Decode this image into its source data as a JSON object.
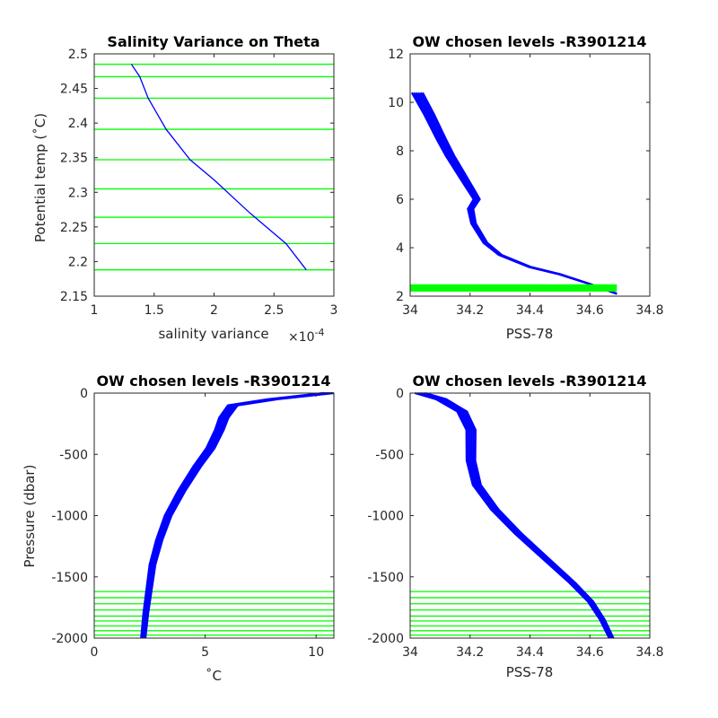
{
  "chart_data": [
    {
      "type": "line",
      "title": "Salinity Variance on Theta",
      "xlabel": "salinity variance",
      "x_exponent_label": "×10",
      "x_exponent_power": "-4",
      "ylabel": "Potential temp (˚C)",
      "xlim": [
        1,
        3
      ],
      "ylim": [
        2.15,
        2.5
      ],
      "xticks": [
        1,
        1.5,
        2,
        2.5,
        3
      ],
      "xtick_labels": [
        "1",
        "1.5",
        "2",
        "2.5",
        "3"
      ],
      "yticks": [
        2.15,
        2.2,
        2.25,
        2.3,
        2.35,
        2.4,
        2.45,
        2.5
      ],
      "ytick_labels": [
        "2.15",
        "2.2",
        "2.25",
        "2.3",
        "2.35",
        "2.4",
        "2.45",
        "2.5"
      ],
      "series": [
        {
          "color": "#0000ff",
          "x": [
            1.31,
            1.38,
            1.45,
            1.6,
            1.8,
            2.0,
            2.3,
            2.6,
            2.77
          ],
          "y": [
            2.485,
            2.467,
            2.436,
            2.391,
            2.347,
            2.318,
            2.27,
            2.226,
            2.188
          ]
        }
      ],
      "chosen_levels": {
        "color": "#00ff00",
        "y": [
          2.485,
          2.467,
          2.436,
          2.391,
          2.347,
          2.305,
          2.264,
          2.226,
          2.188
        ]
      }
    },
    {
      "type": "line",
      "title": "OW chosen levels -R3901214",
      "xlabel": "PSS-78",
      "ylabel": "",
      "xlim": [
        34,
        34.8
      ],
      "ylim": [
        2,
        12
      ],
      "xticks": [
        34,
        34.2,
        34.4,
        34.6,
        34.8
      ],
      "xtick_labels": [
        "34",
        "34.2",
        "34.4",
        "34.6",
        "34.8"
      ],
      "yticks": [
        2,
        4,
        6,
        8,
        10,
        12
      ],
      "ytick_labels": [
        "2",
        "4",
        "6",
        "8",
        "10",
        "12"
      ],
      "series": [
        {
          "color": "#0000ff",
          "x": [
            34.02,
            34.06,
            34.1,
            34.13,
            34.17,
            34.2,
            34.22,
            34.2,
            34.21,
            34.25,
            34.3,
            34.4,
            34.5,
            34.6,
            34.69
          ],
          "y": [
            10.4,
            9.5,
            8.5,
            7.8,
            7.0,
            6.4,
            6.0,
            5.6,
            5.0,
            4.2,
            3.7,
            3.2,
            2.9,
            2.5,
            2.1
          ]
        }
      ],
      "chosen_levels_band": {
        "color": "#00ff00",
        "x": [
          34,
          34.69
        ],
        "y": [
          2.19,
          2.49
        ]
      }
    },
    {
      "type": "line",
      "title": "OW chosen levels -R3901214",
      "xlabel": "˚C",
      "ylabel": "Pressure (dbar)",
      "xlim": [
        0,
        10.8
      ],
      "ylim": [
        -2000,
        0
      ],
      "xticks": [
        0,
        5,
        10
      ],
      "xtick_labels": [
        "0",
        "5",
        "10"
      ],
      "yticks": [
        -2000,
        -1500,
        -1000,
        -500,
        0
      ],
      "ytick_labels": [
        "-2000",
        "-1500",
        "-1000",
        "-500",
        "0"
      ],
      "series": [
        {
          "color": "#0000ff",
          "x": [
            10.5,
            8.0,
            6.2,
            5.8,
            5.6,
            5.2,
            4.6,
            3.9,
            3.3,
            2.9,
            2.6,
            2.45,
            2.3,
            2.19
          ],
          "y": [
            0,
            -50,
            -100,
            -200,
            -300,
            -450,
            -600,
            -800,
            -1000,
            -1200,
            -1400,
            -1600,
            -1800,
            -2000
          ]
        }
      ],
      "chosen_levels": {
        "color": "#00ff00",
        "y": [
          -1620,
          -1670,
          -1720,
          -1770,
          -1820,
          -1860,
          -1900,
          -1940,
          -1975
        ]
      }
    },
    {
      "type": "line",
      "title": "OW chosen levels -R3901214",
      "xlabel": "PSS-78",
      "ylabel": "",
      "xlim": [
        34,
        34.8
      ],
      "ylim": [
        -2000,
        0
      ],
      "xticks": [
        34,
        34.2,
        34.4,
        34.6,
        34.8
      ],
      "xtick_labels": [
        "34",
        "34.2",
        "34.4",
        "34.6",
        "34.8"
      ],
      "yticks": [
        -2000,
        -1500,
        -1000,
        -500,
        0
      ],
      "ytick_labels": [
        "-2000",
        "-1500",
        "-1000",
        "-500",
        "0"
      ],
      "series": [
        {
          "color": "#0000ff",
          "x": [
            34.03,
            34.1,
            34.17,
            34.2,
            34.2,
            34.22,
            34.28,
            34.36,
            34.45,
            34.54,
            34.6,
            34.64,
            34.67
          ],
          "y": [
            0,
            -50,
            -150,
            -300,
            -550,
            -750,
            -950,
            -1150,
            -1350,
            -1550,
            -1700,
            -1850,
            -2000
          ]
        }
      ],
      "chosen_levels": {
        "color": "#00ff00",
        "y": [
          -1620,
          -1670,
          -1720,
          -1770,
          -1820,
          -1860,
          -1900,
          -1940,
          -1975
        ]
      }
    }
  ]
}
